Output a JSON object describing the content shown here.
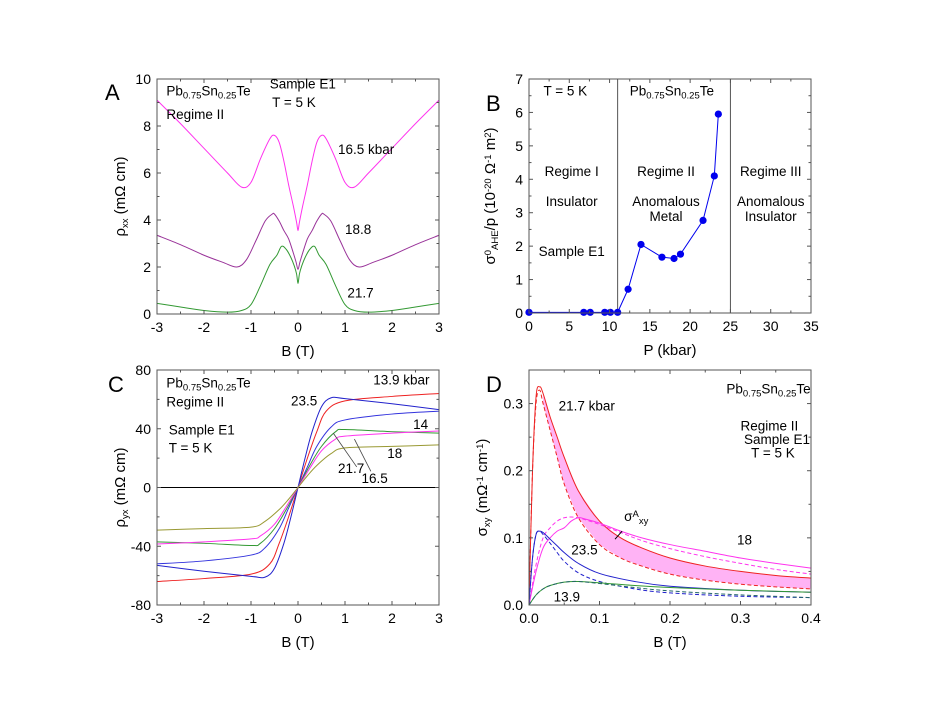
{
  "figure": {
    "panels": [
      "A",
      "B",
      "C",
      "D"
    ],
    "compound": "Pb0.75Sn0.25Te"
  },
  "chart_data": [
    {
      "panel": "A",
      "type": "line",
      "title": "",
      "xlabel": "B (T)",
      "ylabel": "ρxx (mΩ cm)",
      "xlim": [
        -3,
        3
      ],
      "ylim": [
        0,
        10
      ],
      "xticks": [
        -3,
        -2,
        -1,
        0,
        1,
        2,
        3
      ],
      "yticks": [
        0,
        2,
        4,
        6,
        8,
        10
      ],
      "grid": false,
      "annotations": [
        {
          "text": "Pb0.75Sn0.25Te",
          "x": -2.8,
          "y": 9.3
        },
        {
          "text": "Regime II",
          "x": -2.8,
          "y": 8.3
        },
        {
          "text": "Sample E1",
          "x": -0.6,
          "y": 9.6
        },
        {
          "text": "T = 5 K",
          "x": -0.55,
          "y": 8.8
        },
        {
          "text": "16.5 kbar",
          "x": 0.85,
          "y": 6.8
        },
        {
          "text": "18.8",
          "x": 1.0,
          "y": 3.4
        },
        {
          "text": "21.7",
          "x": 1.05,
          "y": 0.7
        }
      ],
      "series": [
        {
          "name": "16.5 kbar",
          "color": "#ff33ee",
          "x": [
            -3,
            -2.5,
            -2,
            -1.5,
            -1.2,
            -1.0,
            -0.8,
            -0.6,
            -0.5,
            -0.4,
            -0.3,
            -0.2,
            -0.1,
            -0.03,
            0,
            0.03,
            0.1,
            0.2,
            0.3,
            0.4,
            0.5,
            0.6,
            0.8,
            1.0,
            1.2,
            1.5,
            2,
            2.5,
            3
          ],
          "y": [
            9.1,
            8.1,
            7.05,
            6.0,
            5.4,
            5.6,
            6.6,
            7.45,
            7.6,
            7.3,
            6.5,
            5.5,
            4.6,
            3.9,
            3.55,
            3.9,
            4.6,
            5.5,
            6.5,
            7.3,
            7.6,
            7.45,
            6.6,
            5.6,
            5.4,
            6.0,
            7.05,
            8.1,
            9.1
          ]
        },
        {
          "name": "18.8",
          "color": "#993399",
          "x": [
            -3,
            -2.5,
            -2,
            -1.6,
            -1.3,
            -1.1,
            -0.9,
            -0.7,
            -0.55,
            -0.5,
            -0.4,
            -0.3,
            -0.2,
            -0.1,
            -0.04,
            0,
            0.04,
            0.1,
            0.2,
            0.3,
            0.4,
            0.5,
            0.55,
            0.7,
            0.9,
            1.1,
            1.3,
            1.6,
            2,
            2.5,
            3
          ],
          "y": [
            3.35,
            2.95,
            2.5,
            2.2,
            2.0,
            2.3,
            3.1,
            3.95,
            4.25,
            4.25,
            3.95,
            3.55,
            3.2,
            2.6,
            2.2,
            1.9,
            2.2,
            2.6,
            3.2,
            3.55,
            3.95,
            4.25,
            4.25,
            3.95,
            3.1,
            2.3,
            2.0,
            2.2,
            2.5,
            2.95,
            3.35
          ]
        },
        {
          "name": "21.7",
          "color": "#339933",
          "x": [
            -3,
            -2.5,
            -2,
            -1.5,
            -1.2,
            -1.0,
            -0.8,
            -0.6,
            -0.45,
            -0.35,
            -0.25,
            -0.15,
            -0.08,
            -0.03,
            0,
            0.03,
            0.08,
            0.15,
            0.25,
            0.35,
            0.45,
            0.6,
            0.8,
            1.0,
            1.2,
            1.5,
            2,
            2.5,
            3
          ],
          "y": [
            0.45,
            0.3,
            0.15,
            0.08,
            0.15,
            0.4,
            1.2,
            2.1,
            2.5,
            2.88,
            2.75,
            2.4,
            2.05,
            1.7,
            1.3,
            1.7,
            2.05,
            2.4,
            2.75,
            2.88,
            2.5,
            2.1,
            1.2,
            0.4,
            0.15,
            0.08,
            0.15,
            0.3,
            0.45
          ]
        }
      ]
    },
    {
      "panel": "B",
      "type": "line",
      "title": "",
      "xlabel": "P (kbar)",
      "ylabel": "σ0AHE/p (10^-20 Ω^-1 m^2)",
      "xlim": [
        0,
        35
      ],
      "ylim": [
        0,
        7
      ],
      "xticks": [
        0,
        5,
        10,
        15,
        20,
        25,
        30,
        35
      ],
      "yticks": [
        0,
        1,
        2,
        3,
        4,
        5,
        6,
        7
      ],
      "grid": false,
      "vlines": [
        11,
        25
      ],
      "annotations": [
        {
          "text": "T = 5 K",
          "x": 1.8,
          "y": 6.5
        },
        {
          "text": "Pb0.75Sn0.25Te",
          "x": 12.5,
          "y": 6.5
        },
        {
          "text": "Regime I",
          "x": 5.3,
          "y": 4.1
        },
        {
          "text": "Insulator",
          "x": 5.3,
          "y": 3.2
        },
        {
          "text": "Sample E1",
          "x": 5.3,
          "y": 1.7
        },
        {
          "text": "Regime II",
          "x": 17.0,
          "y": 4.1
        },
        {
          "text": "Anomalous",
          "x": 17.0,
          "y": 3.2
        },
        {
          "text": "Metal",
          "x": 17.0,
          "y": 2.75
        },
        {
          "text": "Regime III",
          "x": 30.0,
          "y": 4.1
        },
        {
          "text": "Anomalous",
          "x": 30.0,
          "y": 3.2
        },
        {
          "text": "Insulator",
          "x": 30.0,
          "y": 2.75
        }
      ],
      "series": [
        {
          "name": "Sample E1",
          "color": "#0000ee",
          "marker": "circle",
          "x": [
            0,
            6.8,
            7.6,
            9.4,
            10.1,
            11.0,
            12.3,
            13.9,
            16.5,
            18.0,
            18.8,
            21.6,
            23.0,
            23.5
          ],
          "y": [
            0.02,
            0.02,
            0.02,
            0.02,
            0.02,
            0.02,
            0.71,
            2.05,
            1.67,
            1.63,
            1.76,
            2.77,
            4.1,
            5.95
          ]
        }
      ]
    },
    {
      "panel": "C",
      "type": "line",
      "title": "",
      "xlabel": "B (T)",
      "ylabel": "ρyx (mΩ cm)",
      "xlim": [
        -3,
        3
      ],
      "ylim": [
        -80,
        80
      ],
      "xticks": [
        -3,
        -2,
        -1,
        0,
        1,
        2,
        3
      ],
      "yticks": [
        -80,
        -40,
        0,
        40,
        80
      ],
      "grid": false,
      "hlines": [
        0
      ],
      "annotations": [
        {
          "text": "Pb0.75Sn0.25Te",
          "x": -2.8,
          "y": 68
        },
        {
          "text": "Regime II",
          "x": -2.8,
          "y": 55
        },
        {
          "text": "Sample E1",
          "x": -2.75,
          "y": 36
        },
        {
          "text": "T = 5 K",
          "x": -2.75,
          "y": 24
        },
        {
          "text": "13.9 kbar",
          "x": 1.6,
          "y": 70
        },
        {
          "text": "23.5",
          "x": -0.15,
          "y": 56
        },
        {
          "text": "14",
          "x": 2.45,
          "y": 40
        },
        {
          "text": "18",
          "x": 1.9,
          "y": 20
        },
        {
          "text": "21.7",
          "x": 0.85,
          "y": 10
        },
        {
          "text": "16.5",
          "x": 1.35,
          "y": 3
        }
      ],
      "series": [
        {
          "name": "13.9 kbar",
          "color": "#ee2222",
          "x": [
            -3,
            -2,
            -1,
            -0.6,
            -0.4,
            -0.2,
            0,
            0.2,
            0.4,
            0.6,
            1,
            2,
            3
          ],
          "y": [
            -64,
            -62,
            -59,
            -52,
            -38,
            -20,
            0,
            20,
            38,
            52,
            59,
            62,
            64
          ]
        },
        {
          "name": "23.5",
          "color": "#2222cc",
          "x": [
            -3,
            -2,
            -1,
            -0.7,
            -0.5,
            -0.3,
            -0.15,
            0,
            0.15,
            0.3,
            0.5,
            0.7,
            1,
            2,
            3
          ],
          "y": [
            -53,
            -57,
            -60.5,
            -61,
            -55,
            -38,
            -20,
            0,
            20,
            38,
            55,
            61,
            60.5,
            57,
            53
          ]
        },
        {
          "name": "14",
          "color": "#3333dd",
          "x": [
            -3,
            -2,
            -1,
            -0.7,
            -0.4,
            -0.2,
            0,
            0.2,
            0.4,
            0.7,
            1,
            2,
            3
          ],
          "y": [
            -52,
            -50,
            -46,
            -41,
            -28,
            -14,
            0,
            14,
            28,
            41,
            46,
            50,
            52
          ]
        },
        {
          "name": "21.7",
          "color": "#339933",
          "x": [
            -3,
            -2,
            -1,
            -0.8,
            -0.5,
            -0.25,
            0,
            0.25,
            0.5,
            0.8,
            1,
            2,
            3
          ],
          "y": [
            -37,
            -38,
            -39.5,
            -38,
            -28,
            -15,
            0,
            15,
            28,
            38,
            39.5,
            38,
            37
          ]
        },
        {
          "name": "16.5",
          "color": "#ff33ee",
          "x": [
            -3,
            -2,
            -1,
            -0.8,
            -0.5,
            -0.25,
            0,
            0.25,
            0.5,
            0.8,
            1,
            2,
            3
          ],
          "y": [
            -38.5,
            -37,
            -35,
            -33,
            -25,
            -13,
            0,
            13,
            25,
            33,
            35,
            37,
            38.5
          ]
        },
        {
          "name": "18",
          "color": "#999933",
          "x": [
            -3,
            -2,
            -1,
            -0.7,
            -0.4,
            -0.2,
            0,
            0.2,
            0.4,
            0.7,
            1,
            2,
            3
          ],
          "y": [
            -29,
            -28,
            -27,
            -23,
            -15,
            -8,
            0,
            8,
            15,
            23,
            27,
            28,
            29
          ]
        }
      ]
    },
    {
      "panel": "D",
      "type": "line",
      "title": "",
      "xlabel": "B (T)",
      "ylabel": "σxy (mΩ^-1 cm^-1)",
      "xlim": [
        0,
        0.4
      ],
      "ylim": [
        0,
        0.35
      ],
      "xticks": [
        0.0,
        0.1,
        0.2,
        0.3,
        0.4
      ],
      "yticks": [
        0.0,
        0.1,
        0.2,
        0.3
      ],
      "grid": false,
      "fill_between": {
        "upper": "21.7 kbar",
        "lower": "21.7 kbar (dashed)",
        "color": "#ffb3f5",
        "label": "σAxy"
      },
      "annotations": [
        {
          "text": "Pb0.75Sn0.25Te",
          "x": 0.28,
          "y": 0.315
        },
        {
          "text": "Regime II",
          "x": 0.3,
          "y": 0.26
        },
        {
          "text": "Sample E1",
          "x": 0.305,
          "y": 0.24
        },
        {
          "text": "T = 5 K",
          "x": 0.315,
          "y": 0.22
        },
        {
          "text": "21.7 kbar",
          "x": 0.042,
          "y": 0.29
        },
        {
          "text": "σAxy",
          "x": 0.135,
          "y": 0.125
        },
        {
          "text": "23.5",
          "x": 0.06,
          "y": 0.075
        },
        {
          "text": "18",
          "x": 0.295,
          "y": 0.09
        },
        {
          "text": "13.9",
          "x": 0.035,
          "y": 0.005
        }
      ],
      "series": [
        {
          "name": "21.7 kbar",
          "color": "#ee2222",
          "dash": false,
          "x": [
            0,
            0.005,
            0.01,
            0.015,
            0.02,
            0.03,
            0.04,
            0.05,
            0.07,
            0.1,
            0.13,
            0.16,
            0.2,
            0.25,
            0.3,
            0.35,
            0.4
          ],
          "y": [
            0,
            0.2,
            0.31,
            0.325,
            0.315,
            0.28,
            0.25,
            0.22,
            0.17,
            0.125,
            0.1,
            0.085,
            0.07,
            0.058,
            0.05,
            0.044,
            0.04
          ]
        },
        {
          "name": "21.7 kbar (dashed)",
          "color": "#ee2222",
          "dash": true,
          "x": [
            0,
            0.005,
            0.01,
            0.015,
            0.02,
            0.03,
            0.04,
            0.05,
            0.07,
            0.1,
            0.13,
            0.16,
            0.2,
            0.25,
            0.3,
            0.35,
            0.4
          ],
          "y": [
            0,
            0.2,
            0.3,
            0.32,
            0.3,
            0.26,
            0.22,
            0.18,
            0.13,
            0.09,
            0.07,
            0.058,
            0.046,
            0.037,
            0.031,
            0.027,
            0.024
          ]
        },
        {
          "name": "18",
          "color": "#ff33ee",
          "dash": false,
          "x": [
            0,
            0.01,
            0.02,
            0.03,
            0.04,
            0.05,
            0.06,
            0.07,
            0.08,
            0.1,
            0.13,
            0.16,
            0.2,
            0.25,
            0.3,
            0.35,
            0.4
          ],
          "y": [
            0,
            0.05,
            0.085,
            0.1,
            0.11,
            0.115,
            0.125,
            0.13,
            0.128,
            0.122,
            0.11,
            0.1,
            0.09,
            0.08,
            0.07,
            0.062,
            0.055
          ]
        },
        {
          "name": "18 (dashed)",
          "color": "#ff33ee",
          "dash": true,
          "x": [
            0,
            0.01,
            0.02,
            0.03,
            0.04,
            0.05,
            0.06,
            0.07,
            0.08,
            0.1,
            0.13,
            0.16,
            0.2,
            0.25,
            0.3,
            0.35,
            0.4
          ],
          "y": [
            0,
            0.06,
            0.1,
            0.115,
            0.125,
            0.13,
            0.131,
            0.13,
            0.127,
            0.12,
            0.108,
            0.096,
            0.084,
            0.072,
            0.062,
            0.053,
            0.046
          ]
        },
        {
          "name": "23.5",
          "color": "#2222cc",
          "dash": false,
          "x": [
            0,
            0.005,
            0.01,
            0.015,
            0.02,
            0.03,
            0.04,
            0.05,
            0.07,
            0.1,
            0.15,
            0.2,
            0.3,
            0.4
          ],
          "y": [
            0,
            0.07,
            0.105,
            0.11,
            0.108,
            0.098,
            0.088,
            0.078,
            0.062,
            0.047,
            0.035,
            0.028,
            0.022,
            0.019
          ]
        },
        {
          "name": "23.5 (dashed)",
          "color": "#2222cc",
          "dash": true,
          "x": [
            0,
            0.005,
            0.01,
            0.015,
            0.02,
            0.03,
            0.04,
            0.05,
            0.07,
            0.1,
            0.15,
            0.2,
            0.3,
            0.4
          ],
          "y": [
            0,
            0.07,
            0.105,
            0.11,
            0.105,
            0.092,
            0.078,
            0.065,
            0.048,
            0.035,
            0.024,
            0.018,
            0.013,
            0.011
          ]
        },
        {
          "name": "13.9",
          "color": "#339933",
          "dash": false,
          "x": [
            0,
            0.01,
            0.02,
            0.03,
            0.05,
            0.07,
            0.1,
            0.15,
            0.2,
            0.3,
            0.4
          ],
          "y": [
            0,
            0.015,
            0.024,
            0.029,
            0.034,
            0.035,
            0.033,
            0.029,
            0.026,
            0.022,
            0.019
          ]
        },
        {
          "name": "13.9 (dashed)",
          "color": "#226666",
          "dash": true,
          "x": [
            0,
            0.01,
            0.02,
            0.03,
            0.05,
            0.07,
            0.1,
            0.15,
            0.2,
            0.3,
            0.4
          ],
          "y": [
            0,
            0.015,
            0.024,
            0.029,
            0.034,
            0.035,
            0.032,
            0.026,
            0.021,
            0.015,
            0.011
          ]
        }
      ]
    }
  ]
}
